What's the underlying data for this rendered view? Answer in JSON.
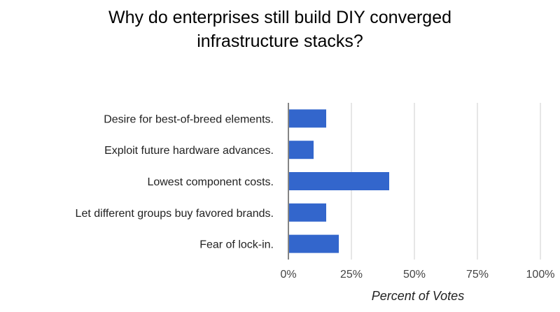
{
  "chart_data": {
    "type": "bar",
    "orientation": "horizontal",
    "title_lines": [
      "Why do enterprises still build DIY converged",
      "infrastructure stacks?"
    ],
    "categories": [
      "Desire for best-of-breed elements.",
      "Exploit future hardware advances.",
      "Lowest component costs.",
      "Let different groups buy favored brands.",
      "Fear of lock-in."
    ],
    "values": [
      15,
      10,
      40,
      15,
      20
    ],
    "xlabel": "Percent of Votes",
    "ylabel": "",
    "xlim": [
      0,
      100
    ],
    "xticks": [
      0,
      25,
      50,
      75,
      100
    ],
    "xtick_labels": [
      "0%",
      "25%",
      "50%",
      "75%",
      "100%"
    ],
    "grid": true,
    "legend": "none",
    "bar_color": "#3366cc",
    "grid_color": "#cccccc"
  }
}
